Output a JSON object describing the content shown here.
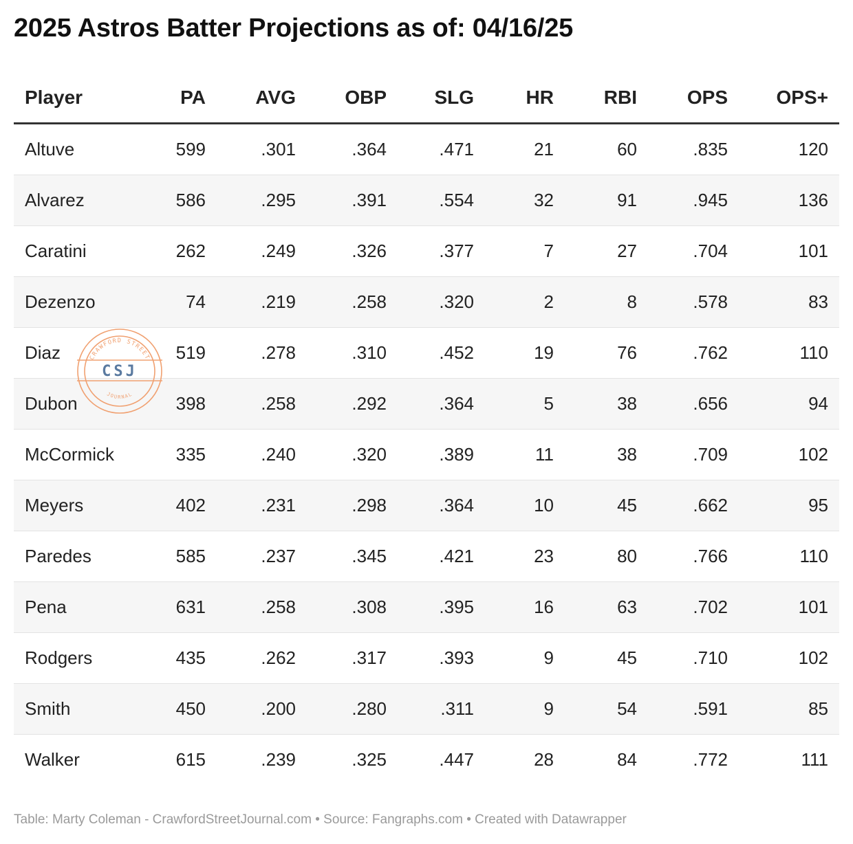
{
  "title": "2025 Astros Batter Projections as of: 04/16/25",
  "footer": "Table: Marty Coleman - CrawfordStreetJournal.com • Source: Fangraphs.com • Created with Datawrapper",
  "watermark": {
    "top_text": "CRAWFORD STREET",
    "center_text": "CSJ",
    "bottom_text": "JOURNAL",
    "color": "#f0a070",
    "text_color": "#5a7aa0"
  },
  "chart_data": {
    "type": "table",
    "title": "2025 Astros Batter Projections as of: 04/16/25",
    "columns": [
      "Player",
      "PA",
      "AVG",
      "OBP",
      "SLG",
      "HR",
      "RBI",
      "OPS",
      "OPS+"
    ],
    "rows": [
      [
        "Altuve",
        "599",
        ".301",
        ".364",
        ".471",
        "21",
        "60",
        ".835",
        "120"
      ],
      [
        "Alvarez",
        "586",
        ".295",
        ".391",
        ".554",
        "32",
        "91",
        ".945",
        "136"
      ],
      [
        "Caratini",
        "262",
        ".249",
        ".326",
        ".377",
        "7",
        "27",
        ".704",
        "101"
      ],
      [
        "Dezenzo",
        "74",
        ".219",
        ".258",
        ".320",
        "2",
        "8",
        ".578",
        "83"
      ],
      [
        "Diaz",
        "519",
        ".278",
        ".310",
        ".452",
        "19",
        "76",
        ".762",
        "110"
      ],
      [
        "Dubon",
        "398",
        ".258",
        ".292",
        ".364",
        "5",
        "38",
        ".656",
        "94"
      ],
      [
        "McCormick",
        "335",
        ".240",
        ".320",
        ".389",
        "11",
        "38",
        ".709",
        "102"
      ],
      [
        "Meyers",
        "402",
        ".231",
        ".298",
        ".364",
        "10",
        "45",
        ".662",
        "95"
      ],
      [
        "Paredes",
        "585",
        ".237",
        ".345",
        ".421",
        "23",
        "80",
        ".766",
        "110"
      ],
      [
        "Pena",
        "631",
        ".258",
        ".308",
        ".395",
        "16",
        "63",
        ".702",
        "101"
      ],
      [
        "Rodgers",
        "435",
        ".262",
        ".317",
        ".393",
        "9",
        "45",
        ".710",
        "102"
      ],
      [
        "Smith",
        "450",
        ".200",
        ".280",
        ".311",
        "9",
        "54",
        ".591",
        "85"
      ],
      [
        "Walker",
        "615",
        ".239",
        ".325",
        ".447",
        "28",
        "84",
        ".772",
        "111"
      ]
    ]
  }
}
